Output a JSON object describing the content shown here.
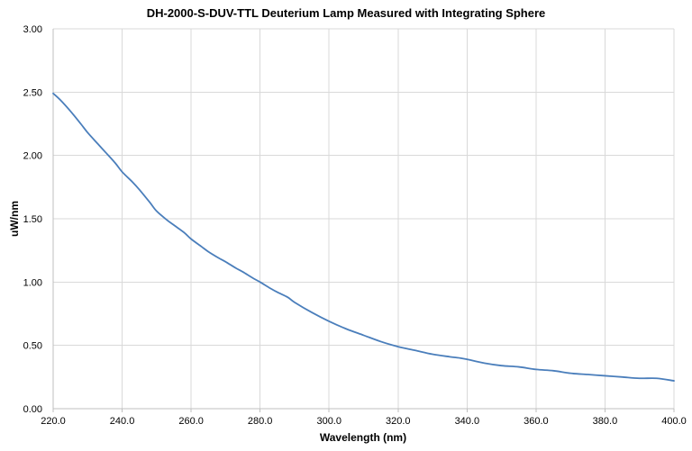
{
  "chart_data": {
    "type": "line",
    "title": "DH-2000-S-DUV-TTL Deuterium Lamp Measured with  Integrating Sphere",
    "xlabel": "Wavelength (nm)",
    "ylabel": "uW/nm",
    "xlim": [
      220.0,
      400.0
    ],
    "ylim": [
      0.0,
      3.0
    ],
    "x_ticks": [
      "220.0",
      "240.0",
      "260.0",
      "280.0",
      "300.0",
      "320.0",
      "340.0",
      "360.0",
      "380.0",
      "400.0"
    ],
    "y_ticks": [
      "0.00",
      "0.50",
      "1.00",
      "1.50",
      "2.00",
      "2.50",
      "3.00"
    ],
    "grid": true,
    "legend": "none",
    "line_color": "#4a7ebb",
    "series": [
      {
        "x": [
          220,
          222,
          225,
          228,
          230,
          233,
          235,
          238,
          240,
          243,
          245,
          248,
          250,
          253,
          255,
          258,
          260,
          263,
          265,
          268,
          270,
          273,
          275,
          278,
          280,
          283,
          285,
          288,
          290,
          295,
          300,
          305,
          310,
          315,
          320,
          325,
          330,
          335,
          338,
          340,
          345,
          350,
          355,
          360,
          365,
          370,
          375,
          380,
          385,
          390,
          395,
          400
        ],
        "y": [
          2.49,
          2.44,
          2.35,
          2.25,
          2.18,
          2.09,
          2.03,
          1.94,
          1.87,
          1.79,
          1.73,
          1.63,
          1.56,
          1.49,
          1.45,
          1.39,
          1.34,
          1.28,
          1.24,
          1.19,
          1.16,
          1.11,
          1.08,
          1.03,
          1.0,
          0.95,
          0.92,
          0.88,
          0.84,
          0.76,
          0.69,
          0.63,
          0.58,
          0.53,
          0.49,
          0.46,
          0.43,
          0.41,
          0.4,
          0.39,
          0.36,
          0.34,
          0.33,
          0.31,
          0.3,
          0.28,
          0.27,
          0.26,
          0.25,
          0.24,
          0.24,
          0.22
        ]
      }
    ]
  }
}
